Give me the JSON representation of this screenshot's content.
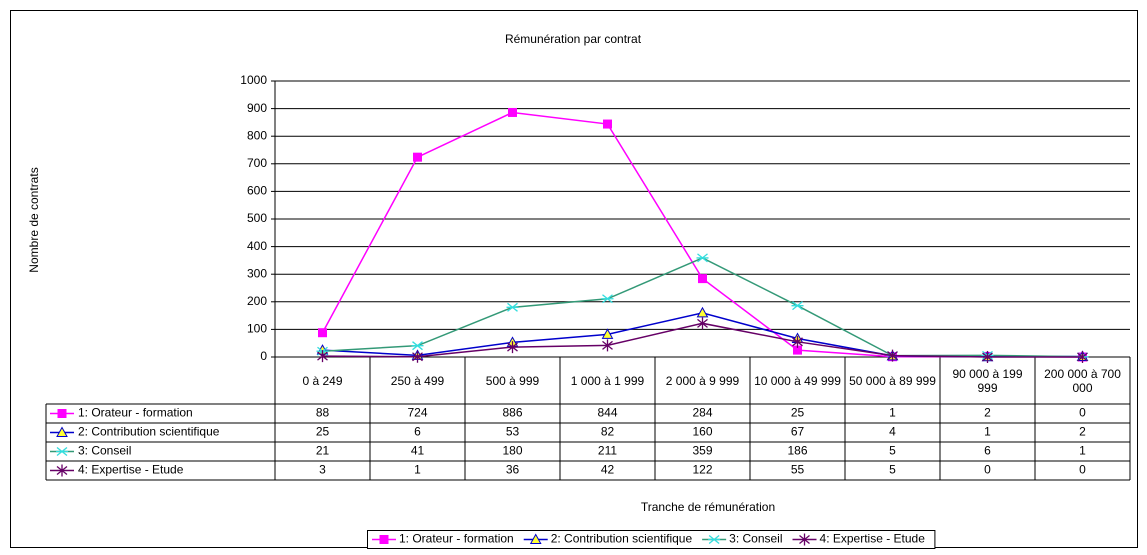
{
  "chart_data": {
    "type": "line",
    "title": "Rémunération par contrat",
    "x_label": "Tranche de rémunération",
    "y_label": "Nombre de contrats",
    "categories": [
      "0 à 249",
      "250 à 499",
      "500 à 999",
      "1 000 à 1 999",
      "2 000 à 9 999",
      "10 000 à 49 999",
      "50 000 à 89 999",
      "90 000 à 199 999",
      "200 000 à 700 000"
    ],
    "series": [
      {
        "name": "1: Orateur - formation",
        "color": "#ff00ff",
        "marker": "square",
        "marker_color": "#ff00ff",
        "values": [
          88,
          724,
          886,
          844,
          284,
          25,
          1,
          2,
          0
        ]
      },
      {
        "name": "2: Contribution scientifique",
        "color": "#0000cc",
        "marker": "triangle",
        "marker_color": "#ffff33",
        "values": [
          25,
          6,
          53,
          82,
          160,
          67,
          4,
          1,
          2
        ]
      },
      {
        "name": "3: Conseil",
        "color": "#339977",
        "marker": "star",
        "marker_color": "#33dddd",
        "values": [
          21,
          41,
          180,
          211,
          359,
          186,
          5,
          6,
          1
        ]
      },
      {
        "name": "4: Expertise - Etude",
        "color": "#660066",
        "marker": "asterisk",
        "marker_color": "#660066",
        "values": [
          3,
          1,
          36,
          42,
          122,
          55,
          5,
          0,
          0
        ]
      }
    ],
    "ylim": [
      0,
      1000
    ],
    "yticks": [
      0,
      100,
      200,
      300,
      400,
      500,
      600,
      700,
      800,
      900,
      1000
    ],
    "grid": true,
    "legend": "bottom"
  }
}
